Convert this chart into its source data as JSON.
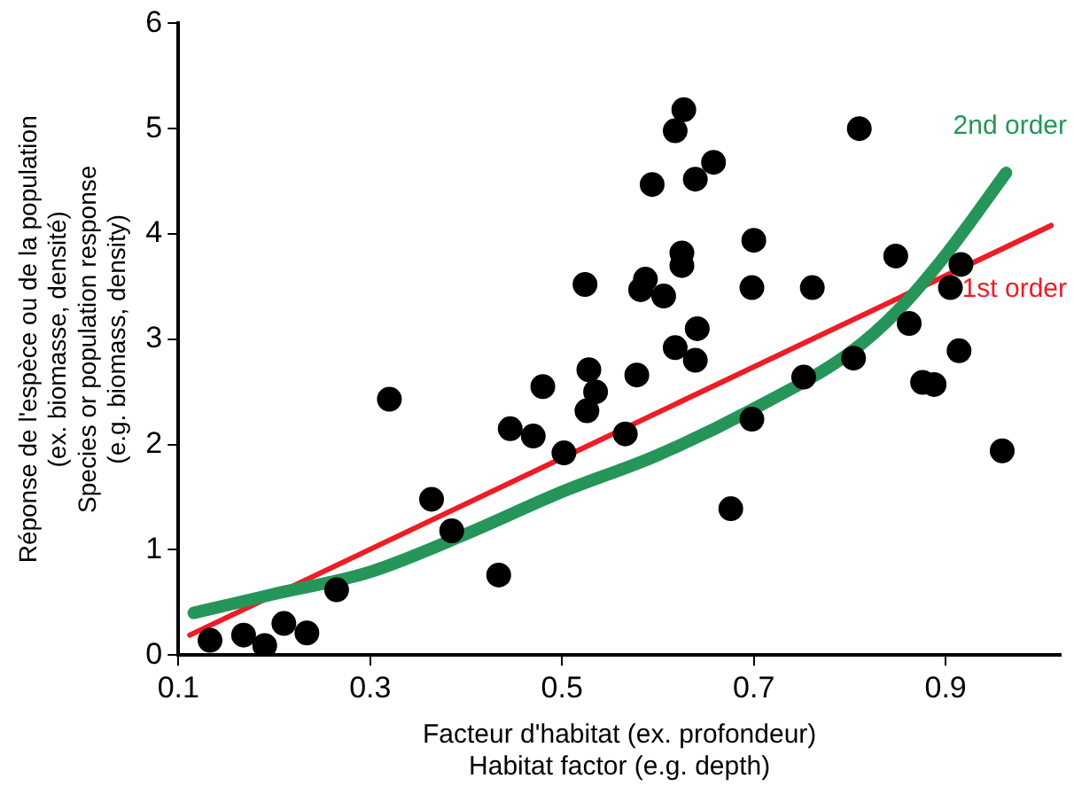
{
  "chart_data": {
    "type": "scatter",
    "xlabel": "Facteur d'habitat (ex. profondeur)\nHabitat factor (e.g. depth)",
    "ylabel": "Réponse de l'espèce ou de la population\n(ex. biomasse, densité)\nSpecies or population response\n(e.g. biomass, density)",
    "xlim": [
      0.1,
      1.02
    ],
    "ylim": [
      0,
      6
    ],
    "xticks": [
      0.1,
      0.3,
      0.5,
      0.7,
      0.9
    ],
    "yticks": [
      0,
      1,
      2,
      3,
      4,
      5,
      6
    ],
    "grid": false,
    "legend": false,
    "series": [
      {
        "type": "scatter",
        "color": "#000000",
        "marker": "circle",
        "x": [
          0.133,
          0.168,
          0.19,
          0.21,
          0.234,
          0.265,
          0.32,
          0.364,
          0.385,
          0.434,
          0.446,
          0.47,
          0.502,
          0.48,
          0.524,
          0.528,
          0.535,
          0.526,
          0.627,
          0.618,
          0.658,
          0.639,
          0.594,
          0.81,
          0.7,
          0.625,
          0.625,
          0.587,
          0.582,
          0.606,
          0.698,
          0.761,
          0.848,
          0.916,
          0.905,
          0.641,
          0.862,
          0.618,
          0.639,
          0.914,
          0.804,
          0.578,
          0.752,
          0.876,
          0.888,
          0.698,
          0.566,
          0.959,
          0.676
        ],
        "values": [
          0.14,
          0.19,
          0.09,
          0.3,
          0.21,
          0.62,
          2.43,
          1.48,
          1.18,
          0.76,
          2.15,
          2.08,
          1.92,
          2.55,
          3.52,
          2.71,
          2.5,
          2.32,
          5.18,
          4.98,
          4.68,
          4.52,
          4.47,
          5.0,
          3.94,
          3.82,
          3.7,
          3.57,
          3.47,
          3.41,
          3.49,
          3.49,
          3.79,
          3.71,
          3.49,
          3.1,
          3.15,
          2.92,
          2.8,
          2.89,
          2.82,
          2.66,
          2.64,
          2.59,
          2.57,
          2.24,
          2.1,
          1.94,
          1.39
        ]
      },
      {
        "type": "line",
        "name": "2nd order",
        "color": "#26955a",
        "marker": "none",
        "x": [
          0.116,
          0.2,
          0.3,
          0.4,
          0.5,
          0.6,
          0.7,
          0.8,
          0.85,
          0.9,
          0.963
        ],
        "values": [
          0.4,
          0.58,
          0.79,
          1.15,
          1.55,
          1.9,
          2.34,
          2.87,
          3.27,
          3.8,
          4.58
        ]
      },
      {
        "type": "line",
        "name": "1st order",
        "color": "#ee1c25",
        "marker": "none",
        "x": [
          0.112,
          1.01
        ],
        "values": [
          0.19,
          4.08
        ]
      }
    ]
  }
}
